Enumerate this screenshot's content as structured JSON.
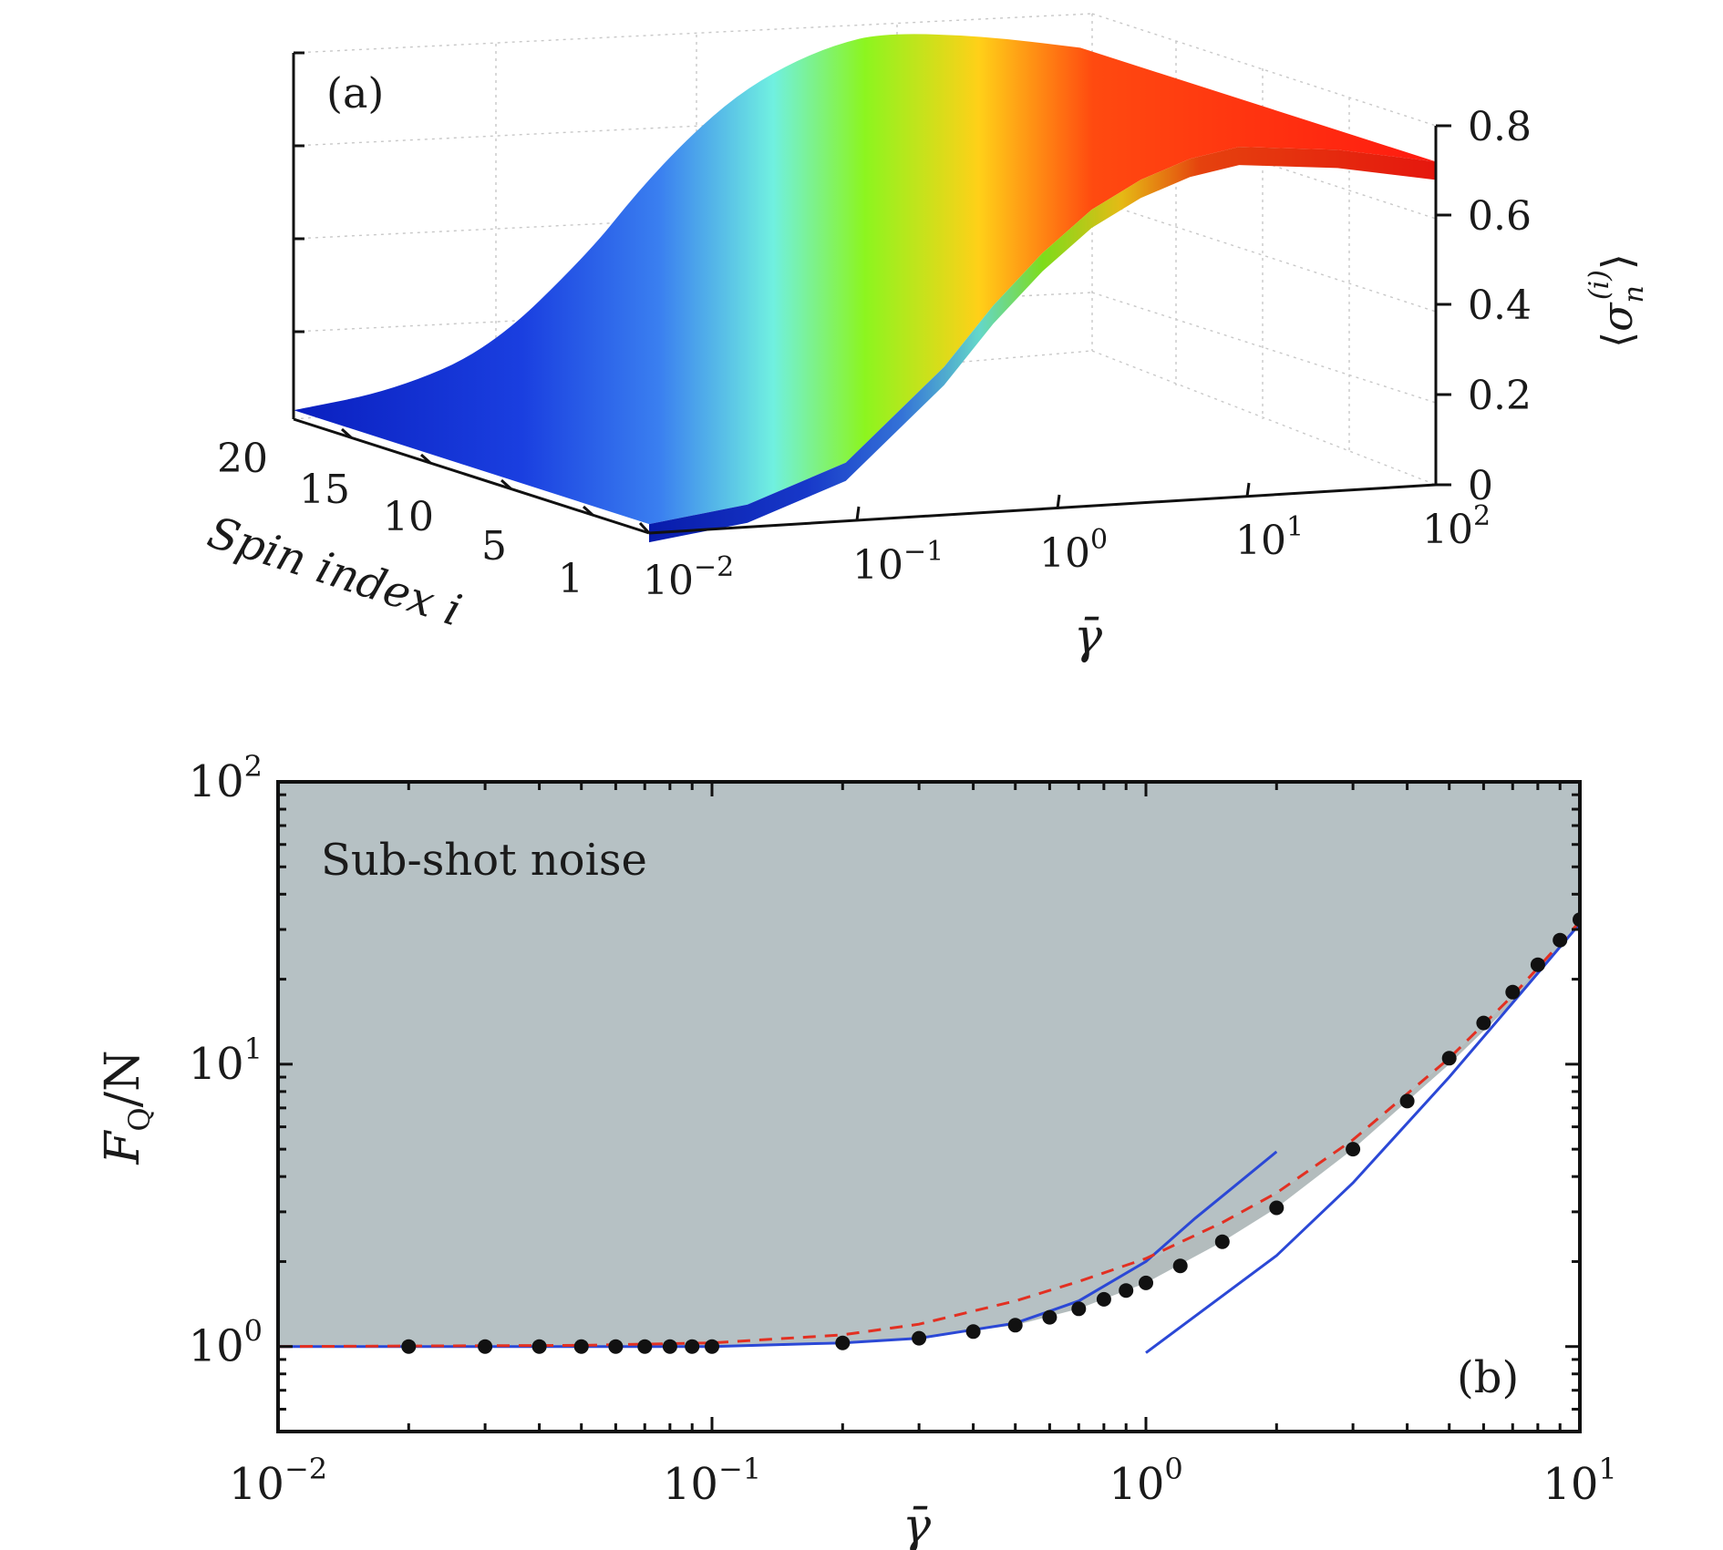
{
  "colors": {
    "surface_low": "#0a1fbf",
    "surface_mid": "#8cf51f",
    "surface_high": "#ff1a10",
    "shade": "#b6c1c4",
    "blue_line": "#2b48d6",
    "red_dash": "#e23022",
    "marker": "#111111"
  },
  "chart_data": [
    {
      "panel": "(a)",
      "type": "surface",
      "xlabel": "γ̄",
      "ylabel": "Spin index i",
      "zlabel": "⟨σ_n^(i)⟩",
      "zlabel_parts": {
        "open": "⟨",
        "base": "σ",
        "sub": "n",
        "sup": "(i)",
        "close": "⟩"
      },
      "x_scale": "log",
      "x_ticks": [
        {
          "base": "10",
          "exp": "−2"
        },
        {
          "base": "10",
          "exp": "−1"
        },
        {
          "base": "10",
          "exp": "0"
        },
        {
          "base": "10",
          "exp": "1"
        },
        {
          "base": "10",
          "exp": "2"
        }
      ],
      "y_ticks": [
        "1",
        "5",
        "10",
        "15",
        "20"
      ],
      "z_ticks": [
        "0",
        "0.2",
        "0.4",
        "0.6",
        "0.8"
      ],
      "zlim": [
        0,
        0.8
      ],
      "log_gamma": [
        -2.0,
        -1.5,
        -1.0,
        -0.5,
        -0.25,
        0.0,
        0.25,
        0.5,
        0.75,
        1.0,
        1.5,
        2.0
      ],
      "z_values": [
        0.02,
        0.05,
        0.13,
        0.33,
        0.46,
        0.57,
        0.66,
        0.72,
        0.76,
        0.78,
        0.76,
        0.72
      ]
    },
    {
      "panel": "(b)",
      "type": "line",
      "xlabel": "γ̄",
      "ylabel": {
        "F": "F",
        "sub": "Q",
        "rest": "/N"
      },
      "region_label": "Sub-shot noise",
      "x_scale": "log",
      "y_scale": "log",
      "xlim": [
        0.01,
        10
      ],
      "ylim": [
        0.5,
        100
      ],
      "x_ticks": [
        {
          "base": "10",
          "exp": "−2"
        },
        {
          "base": "10",
          "exp": "−1"
        },
        {
          "base": "10",
          "exp": "0"
        },
        {
          "base": "10",
          "exp": "1"
        }
      ],
      "y_ticks": [
        {
          "base": "10",
          "exp": "0"
        },
        {
          "base": "10",
          "exp": "1"
        },
        {
          "base": "10",
          "exp": "2"
        }
      ],
      "series": [
        {
          "name": "numerical (dots)",
          "kind": "scatter",
          "x": [
            0.02,
            0.03,
            0.04,
            0.05,
            0.06,
            0.07,
            0.08,
            0.09,
            0.1,
            0.2,
            0.3,
            0.4,
            0.5,
            0.6,
            0.7,
            0.8,
            0.9,
            1.0,
            1.2,
            1.5,
            2,
            3,
            4,
            5,
            6,
            7,
            8,
            9,
            10
          ],
          "y": [
            1.0,
            1.0,
            1.0,
            1.0,
            1.0,
            1.0,
            1.0,
            1.0,
            1.0,
            1.03,
            1.07,
            1.13,
            1.19,
            1.27,
            1.36,
            1.47,
            1.58,
            1.68,
            1.93,
            2.35,
            3.1,
            5.0,
            7.4,
            10.5,
            14.0,
            18.0,
            22.5,
            27.5,
            32.5
          ]
        },
        {
          "name": "red dashed curve",
          "kind": "dashed",
          "x": [
            0.01,
            0.05,
            0.1,
            0.2,
            0.3,
            0.5,
            0.7,
            1.0,
            1.5,
            2.0,
            3.0,
            5.0,
            7.0,
            10.0
          ],
          "y": [
            1.0,
            1.01,
            1.03,
            1.1,
            1.2,
            1.45,
            1.7,
            2.05,
            2.75,
            3.5,
            5.4,
            10.5,
            17.5,
            32.0
          ]
        },
        {
          "name": "blue small-γ approximation",
          "kind": "solid",
          "x": [
            0.01,
            0.05,
            0.1,
            0.2,
            0.3,
            0.5,
            0.7,
            1.0,
            1.3,
            1.6,
            2.0
          ],
          "y": [
            1.0,
            1.0,
            1.0,
            1.03,
            1.07,
            1.21,
            1.45,
            2.0,
            2.85,
            3.7,
            4.9
          ]
        },
        {
          "name": "blue large-γ approximation",
          "kind": "solid",
          "x": [
            1.0,
            2.0,
            3.0,
            5.0,
            7.0,
            10.0
          ],
          "y": [
            0.95,
            2.1,
            3.8,
            9.0,
            16.5,
            31.5
          ]
        },
        {
          "name": "gray band upper",
          "kind": "band",
          "x": [
            0.01,
            0.1,
            0.3,
            0.5,
            0.7,
            1.0,
            1.5,
            2.0,
            3.0,
            5.0,
            7.0,
            10.0
          ],
          "y": [
            1.0,
            1.0,
            1.07,
            1.21,
            1.45,
            2.0,
            2.75,
            3.5,
            5.4,
            10.5,
            17.5,
            32.0
          ]
        },
        {
          "name": "gray band lower",
          "kind": "band",
          "x": [
            0.01,
            0.1,
            0.3,
            0.5,
            0.7,
            1.0,
            1.5,
            2.0,
            3.0,
            5.0,
            7.0,
            10.0
          ],
          "y": [
            1.0,
            1.0,
            1.07,
            1.19,
            1.36,
            1.68,
            2.35,
            3.1,
            5.0,
            10.0,
            16.5,
            31.5
          ]
        }
      ]
    }
  ]
}
